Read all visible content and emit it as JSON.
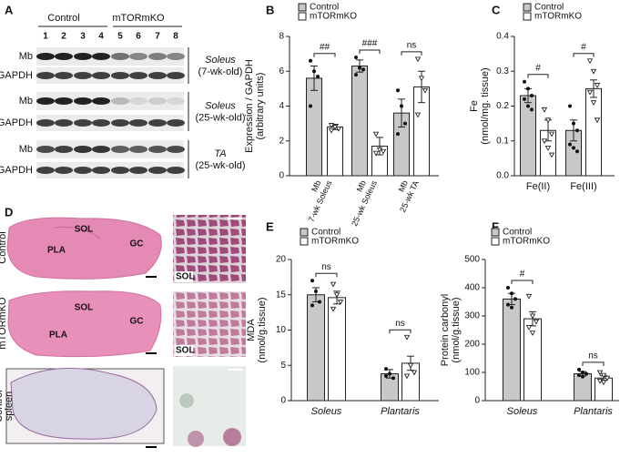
{
  "panels": [
    "A",
    "B",
    "C",
    "D",
    "E",
    "F"
  ],
  "blot": {
    "groups": [
      "Control",
      "mTORmKO"
    ],
    "lanes": [
      "1",
      "2",
      "3",
      "4",
      "5",
      "6",
      "7",
      "8"
    ],
    "rows": [
      {
        "labels": [
          "Mb",
          "GAPDH"
        ],
        "tissue": "Soleus",
        "age": "(7-wk-old)"
      },
      {
        "labels": [
          "Mb",
          "GAPDH"
        ],
        "tissue": "Soleus",
        "age": "(25-wk-old)"
      },
      {
        "labels": [
          "Mb",
          "GAPDH"
        ],
        "tissue": "TA",
        "age": "(25-wk-old)"
      }
    ]
  },
  "histology": {
    "rows": [
      "Control",
      "mTORmKO"
    ],
    "spleen_label": [
      "Control",
      "spleen"
    ],
    "regions": [
      "SOL",
      "PLA",
      "GC"
    ],
    "zoom_label": "SOL"
  },
  "chart_data": [
    {
      "type": "bar",
      "ylabel": [
        "Expression / GAPDH",
        "(arbitrary units)"
      ],
      "categories": [
        [
          "Mb",
          "7-wk Soleus"
        ],
        [
          "Mb",
          "25-wk Soleus"
        ],
        [
          "Mb",
          "25-wk TA"
        ]
      ],
      "series": [
        {
          "name": "Control",
          "color": "#c8c8c8",
          "values": [
            5.6,
            6.3,
            3.6
          ],
          "errors": [
            0.7,
            0.35,
            0.8
          ],
          "points": [
            [
              6.6,
              6.0,
              5.7,
              4.0
            ],
            [
              6.8,
              6.2,
              6.1,
              5.8
            ],
            [
              4.9,
              4.0,
              3.0,
              2.4
            ]
          ]
        },
        {
          "name": "mTORmKO",
          "color": "#ffffff",
          "values": [
            2.8,
            1.7,
            5.1
          ],
          "errors": [
            0.15,
            0.5,
            0.9
          ],
          "points": [
            [
              2.9,
              2.8,
              2.7,
              2.6
            ],
            [
              2.4,
              1.5,
              1.4,
              1.3
            ],
            [
              6.7,
              5.6,
              4.9,
              3.5
            ]
          ]
        }
      ],
      "significance": [
        "##",
        "###",
        "ns"
      ],
      "ylim": [
        0,
        8
      ],
      "yticks": [
        0,
        2,
        4,
        6,
        8
      ]
    },
    {
      "type": "bar",
      "ylabel": [
        "Fe",
        "(nmol/mg. tissue)"
      ],
      "categories": [
        [
          "Fe(II)"
        ],
        [
          "Fe(III)"
        ]
      ],
      "series": [
        {
          "name": "Control",
          "color": "#c8c8c8",
          "values": [
            0.23,
            0.13
          ],
          "errors": [
            0.02,
            0.03
          ],
          "points": [
            [
              0.27,
              0.25,
              0.23,
              0.22,
              0.2,
              0.19
            ],
            [
              0.2,
              0.15,
              0.13,
              0.09,
              0.08,
              0.07
            ]
          ]
        },
        {
          "name": "mTORmKO",
          "color": "#ffffff",
          "values": [
            0.13,
            0.25
          ],
          "errors": [
            0.03,
            0.025
          ],
          "points": [
            [
              0.19,
              0.16,
              0.12,
              0.1,
              0.08,
              0.06
            ],
            [
              0.33,
              0.3,
              0.26,
              0.24,
              0.21,
              0.16
            ]
          ]
        }
      ],
      "significance": [
        "#",
        "#"
      ],
      "ylim": [
        0,
        0.4
      ],
      "yticks": [
        {
          "value": 0,
          "label": "0.0"
        },
        0.1,
        0.2,
        0.3,
        0.4
      ]
    },
    {
      "type": "bar",
      "ylabel": [
        "MDA",
        "(nmol/g.tissue)"
      ],
      "categories": [
        [
          "Soleus"
        ],
        [
          "Plantaris"
        ]
      ],
      "series": [
        {
          "name": "Control",
          "color": "#c8c8c8",
          "values": [
            15,
            3.8
          ],
          "errors": [
            1.0,
            0.6
          ],
          "points": [
            [
              17,
              15.5,
              14,
              13.5
            ],
            [
              4.5,
              3.8,
              3.2,
              3.5
            ]
          ]
        },
        {
          "name": "mTORmKO",
          "color": "#ffffff",
          "values": [
            14.6,
            5.3
          ],
          "errors": [
            0.9,
            1.0
          ],
          "points": [
            [
              16.5,
              15,
              14,
              13
            ],
            [
              9,
              5,
              4,
              3.5
            ]
          ]
        }
      ],
      "significance": [
        "ns",
        "ns"
      ],
      "ylim": [
        0,
        20
      ],
      "yticks": [
        0,
        5,
        10,
        15,
        20
      ]
    },
    {
      "type": "bar",
      "ylabel": [
        "Protein carbonyl",
        "(nmol/g.tissue)"
      ],
      "categories": [
        [
          "Soleus"
        ],
        [
          "Plantaris"
        ]
      ],
      "series": [
        {
          "name": "Control",
          "color": "#c8c8c8",
          "values": [
            360,
            95
          ],
          "errors": [
            20,
            8
          ],
          "points": [
            [
              400,
              380,
              360,
              340,
              330
            ],
            [
              110,
              100,
              95,
              90,
              85
            ]
          ]
        },
        {
          "name": "mTORmKO",
          "color": "#ffffff",
          "values": [
            290,
            80
          ],
          "errors": [
            25,
            8
          ],
          "points": [
            [
              370,
              300,
              280,
              260,
              240
            ],
            [
              100,
              90,
              80,
              70,
              65
            ]
          ]
        }
      ],
      "significance": [
        "#",
        "ns"
      ],
      "ylim": [
        0,
        500
      ],
      "yticks": [
        0,
        100,
        200,
        300,
        400,
        500
      ]
    }
  ]
}
